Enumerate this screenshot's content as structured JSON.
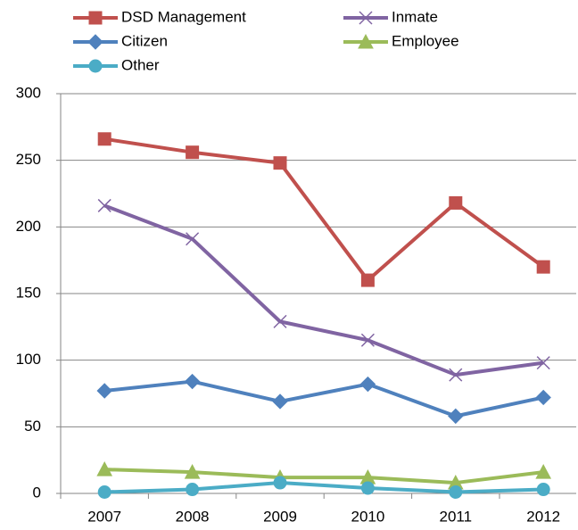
{
  "chart_data": {
    "type": "line",
    "categories": [
      "2007",
      "2008",
      "2009",
      "2010",
      "2011",
      "2012"
    ],
    "series": [
      {
        "name": "DSD Management",
        "color": "#c0504d",
        "marker": "square",
        "values": [
          266,
          256,
          248,
          160,
          218,
          170
        ]
      },
      {
        "name": "Inmate",
        "color": "#8064a2",
        "marker": "x",
        "values": [
          216,
          191,
          129,
          115,
          89,
          98
        ]
      },
      {
        "name": "Citizen",
        "color": "#4f81bd",
        "marker": "diamond",
        "values": [
          77,
          84,
          69,
          82,
          58,
          72
        ]
      },
      {
        "name": "Employee",
        "color": "#9bbb59",
        "marker": "triangle",
        "values": [
          18,
          16,
          12,
          12,
          8,
          16
        ]
      },
      {
        "name": "Other",
        "color": "#4bacc6",
        "marker": "circle",
        "values": [
          1,
          3,
          8,
          4,
          1,
          3
        ]
      }
    ],
    "ylim": [
      0,
      300
    ],
    "yticks": [
      0,
      50,
      100,
      150,
      200,
      250,
      300
    ],
    "grid": true,
    "legend": "top"
  }
}
